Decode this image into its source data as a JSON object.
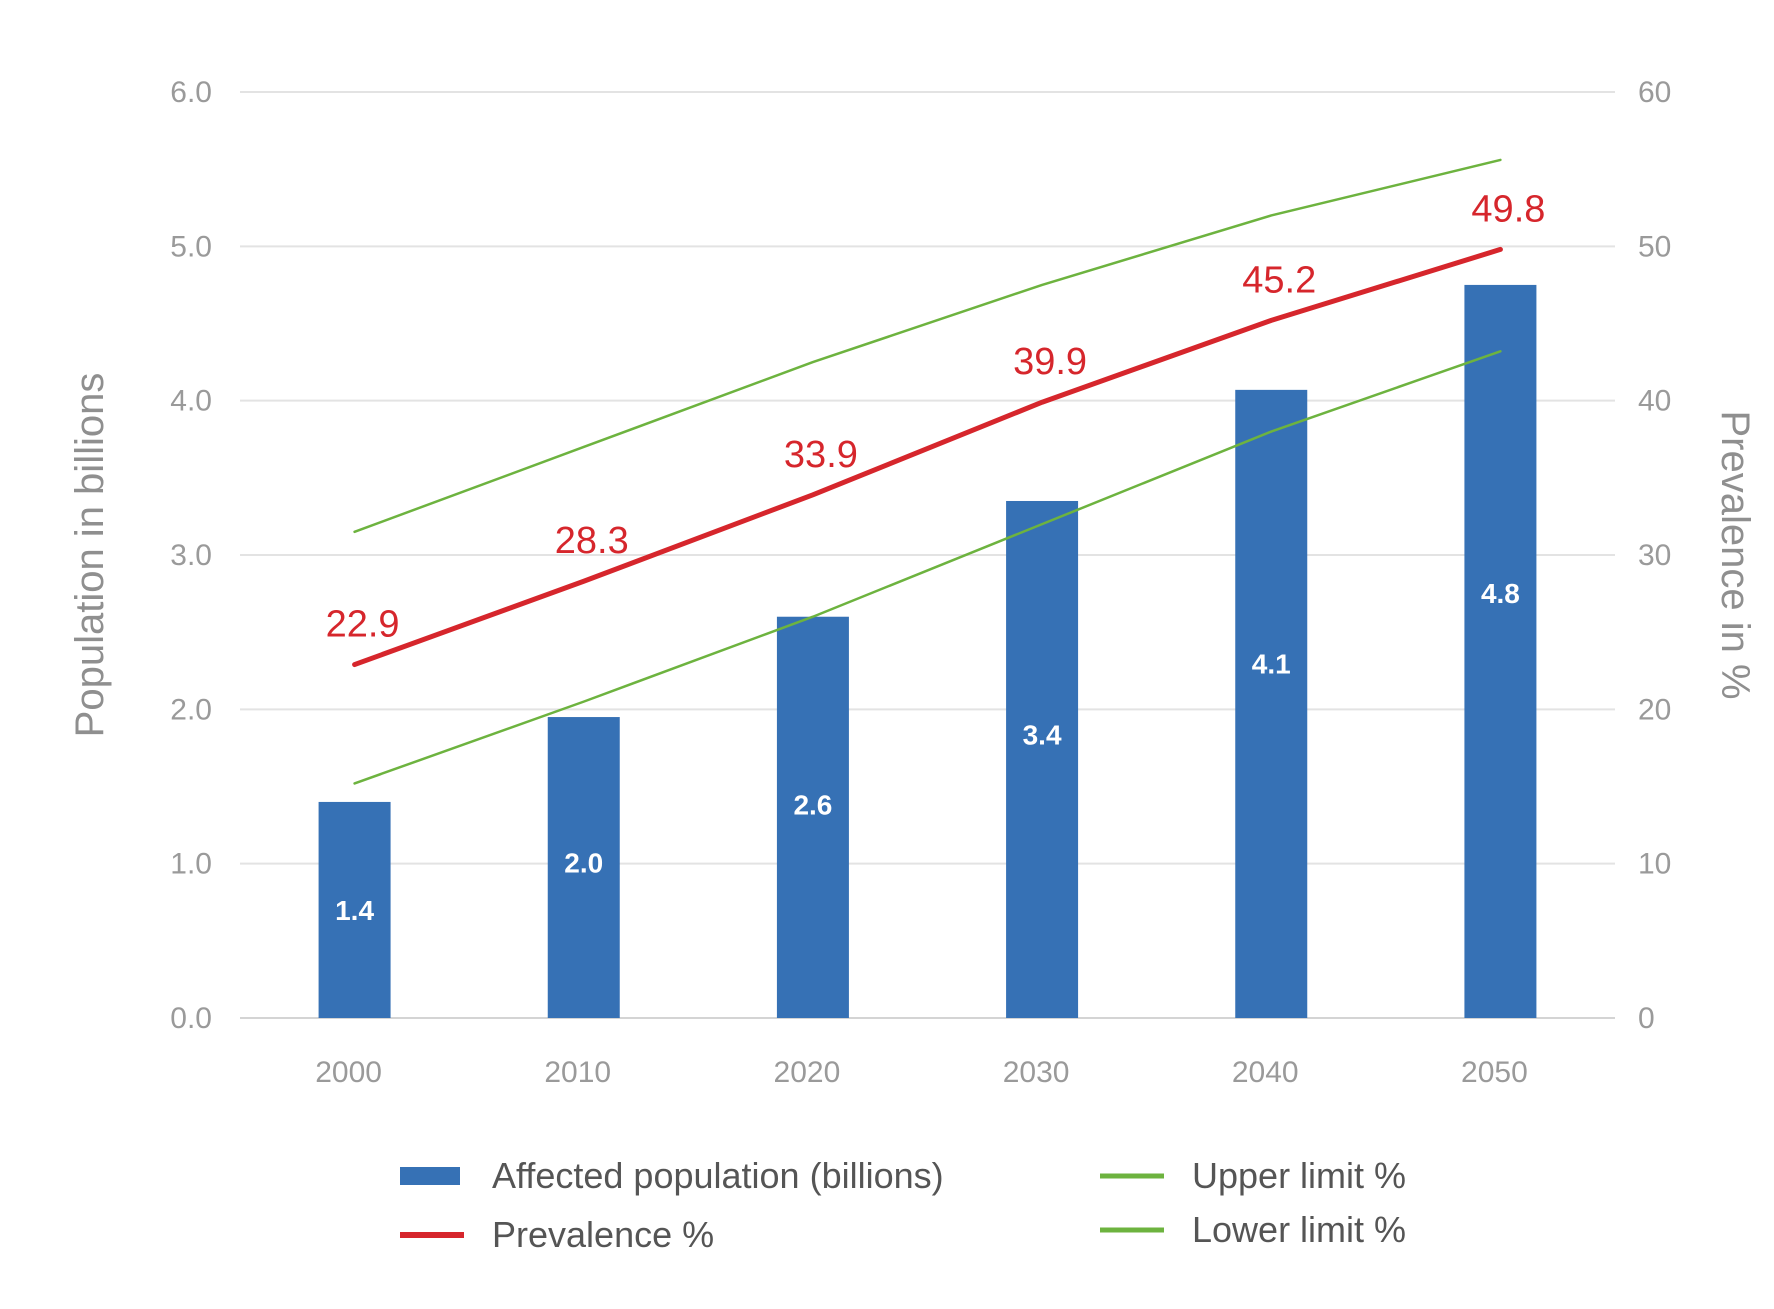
{
  "chart_data": {
    "type": "bar",
    "title": "",
    "categories": [
      "2000",
      "2010",
      "2020",
      "2030",
      "2040",
      "2050"
    ],
    "series": [
      {
        "name": "Affected population (billions)",
        "kind": "bar",
        "axis": "left",
        "color": "#3671b5",
        "values": [
          1.4,
          1.95,
          2.6,
          3.35,
          4.07,
          4.75
        ],
        "labels": [
          "1.4",
          "2.0",
          "2.6",
          "3.4",
          "4.1",
          "4.8"
        ]
      },
      {
        "name": "Prevalence %",
        "kind": "line",
        "axis": "right",
        "color": "#d6262c",
        "values": [
          22.9,
          28.3,
          33.9,
          39.9,
          45.2,
          49.8
        ],
        "labels": [
          "22.9",
          "28.3",
          "33.9",
          "39.9",
          "45.2",
          "49.8"
        ]
      },
      {
        "name": "Upper limit %",
        "kind": "line",
        "axis": "right",
        "color": "#6db33f",
        "values": [
          31.5,
          37,
          42.5,
          47.5,
          52,
          55.6
        ]
      },
      {
        "name": "Lower limit %",
        "kind": "line",
        "axis": "right",
        "color": "#6db33f",
        "values": [
          15.2,
          20.5,
          26,
          32,
          38,
          43.2
        ]
      }
    ],
    "ylabel": "Population in billions",
    "ylim": [
      0,
      6
    ],
    "yticks": [
      "0.0",
      "1.0",
      "2.0",
      "3.0",
      "4.0",
      "5.0",
      "6.0"
    ],
    "y2label": "Prevalence in %",
    "y2lim": [
      0,
      60
    ],
    "y2ticks": [
      "0",
      "10",
      "20",
      "30",
      "40",
      "50",
      "60"
    ],
    "grid": true,
    "legend_position": "bottom"
  }
}
